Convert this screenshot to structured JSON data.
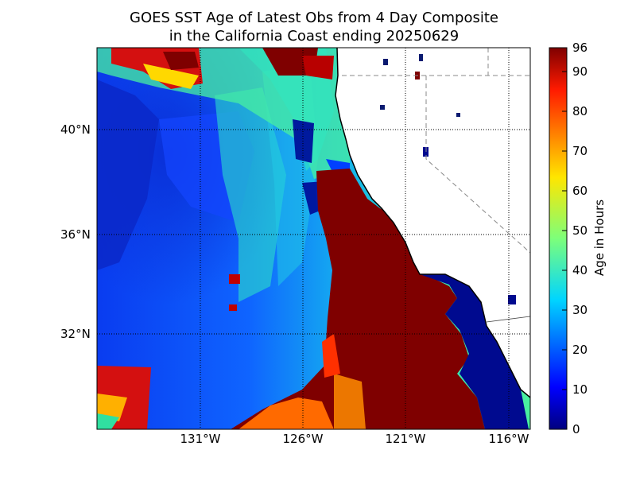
{
  "title": {
    "line1": "GOES SST Age of Latest Obs from 4 Day Composite",
    "line2": "in the California Coast ending 20250629"
  },
  "map": {
    "variable": "Age of latest observation",
    "colormap": "jet",
    "lon_range": [
      -135,
      -114
    ],
    "lat_range": [
      28.2,
      43.1
    ],
    "grid_lines": "dotted",
    "land_color": "#ffffff",
    "state_borders": "dashed gray"
  },
  "axes": {
    "x_ticks": [
      "131°W",
      "126°W",
      "121°W",
      "116°W"
    ],
    "y_ticks": [
      "40°N",
      "36°N",
      "32°N"
    ]
  },
  "colorbar": {
    "label": "Age in Hours",
    "min": 0,
    "max": 96,
    "ticks": [
      "0",
      "10",
      "20",
      "30",
      "40",
      "50",
      "60",
      "70",
      "80",
      "90",
      "96"
    ]
  }
}
